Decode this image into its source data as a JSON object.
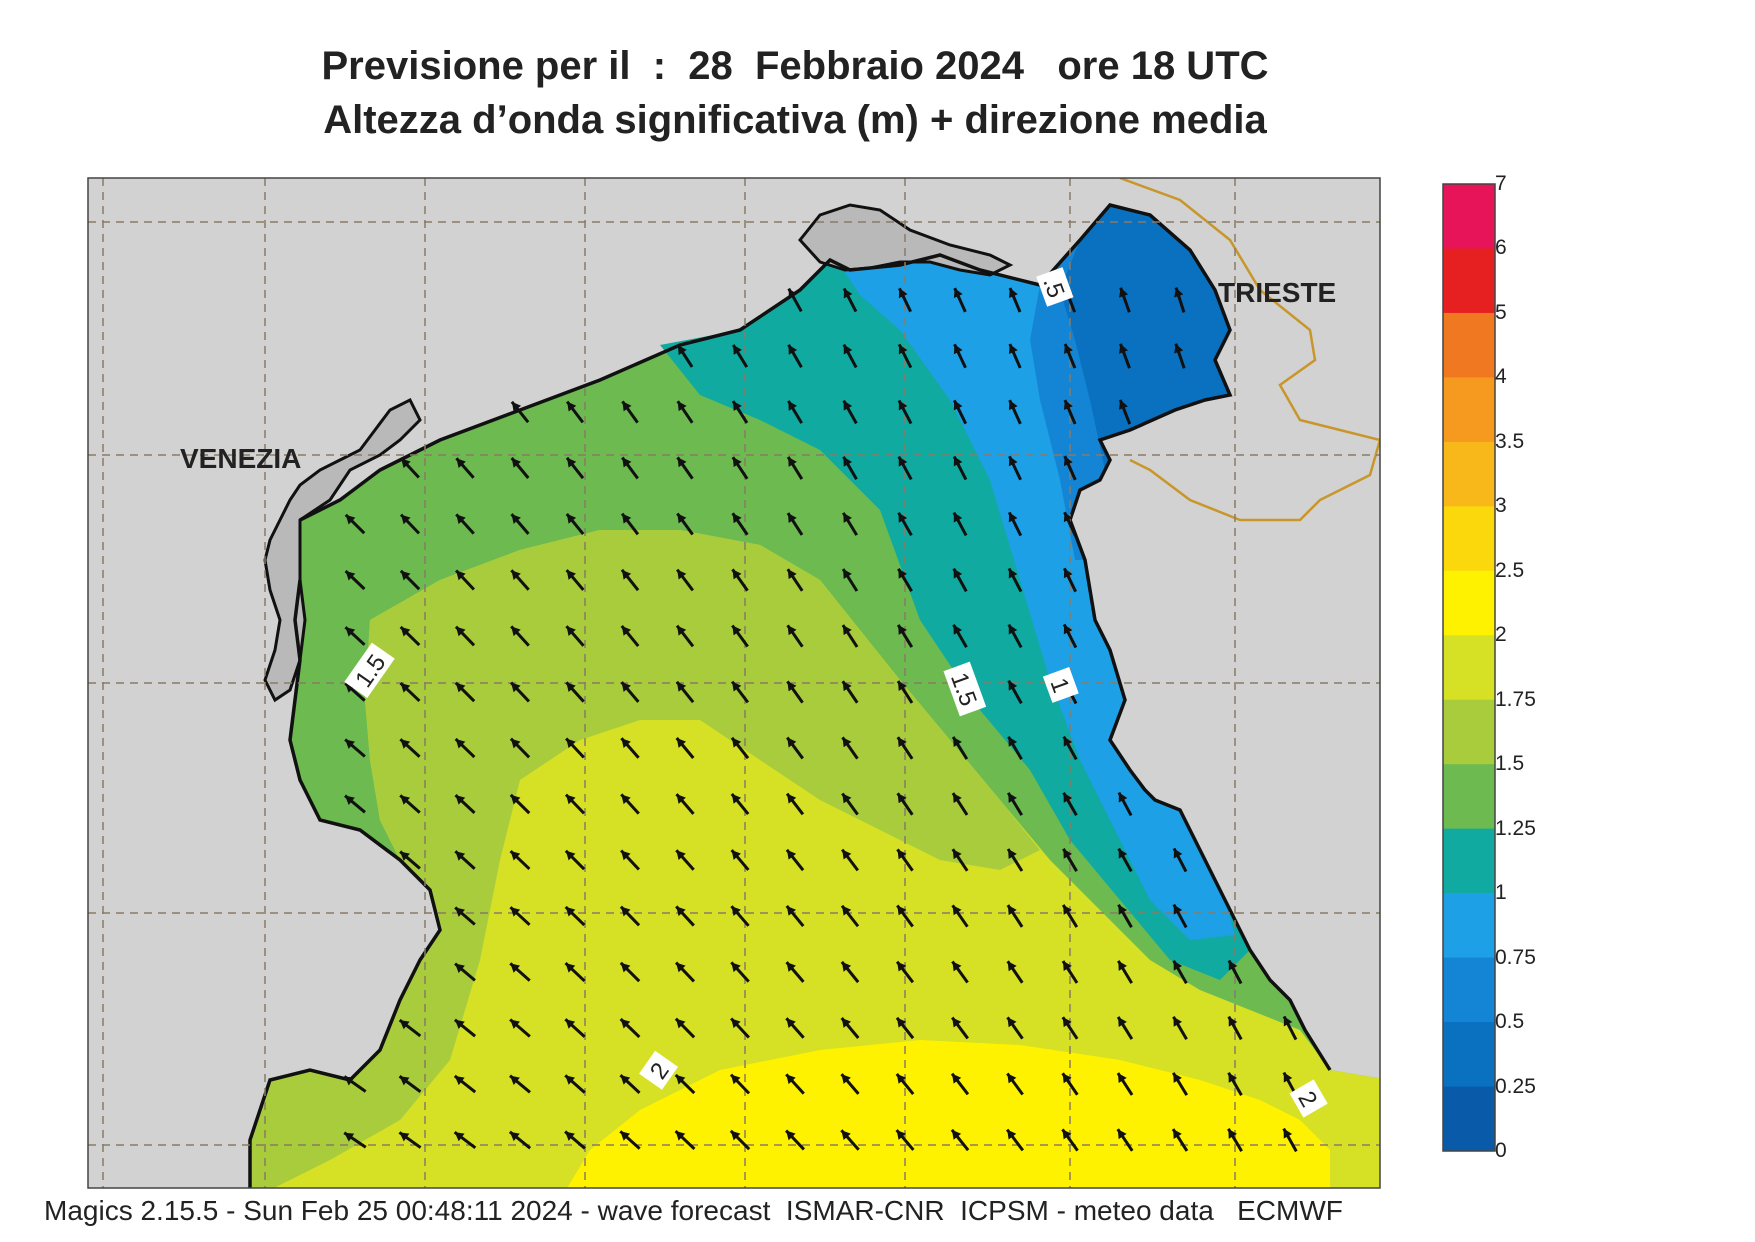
{
  "title": {
    "line1": "Previsione per il  :  28  Febbraio 2024   ore 18 UTC",
    "line2": "Altezza d’onda significativa (m) + direzione media"
  },
  "map_labels": {
    "venezia": "VENEZIA",
    "trieste": "TRIESTE"
  },
  "contour_labels": [
    "1.5",
    "1.5",
    "1",
    "2",
    "2",
    ".5"
  ],
  "colorbar": {
    "levels": [
      "7",
      "6",
      "5",
      "4",
      "3.5",
      "3",
      "2.5",
      "2",
      "1.75",
      "1.5",
      "1.25",
      "1",
      "0.75",
      "0.5",
      "0.25",
      "0"
    ],
    "colors": [
      "#e8145a",
      "#e62020",
      "#f07820",
      "#f59a1e",
      "#f8b81a",
      "#fad80c",
      "#fff200",
      "#d6e024",
      "#a8cc3c",
      "#6cba50",
      "#10aaa0",
      "#1ea0e6",
      "#1484d4",
      "#0a70c0",
      "#0a5aaa"
    ]
  },
  "footer": "Magics 2.15.5 - Sun Feb 25 00:48:11 2024 - wave forecast  ISMAR-CNR  ICPSM - meteo data   ECMWF"
}
